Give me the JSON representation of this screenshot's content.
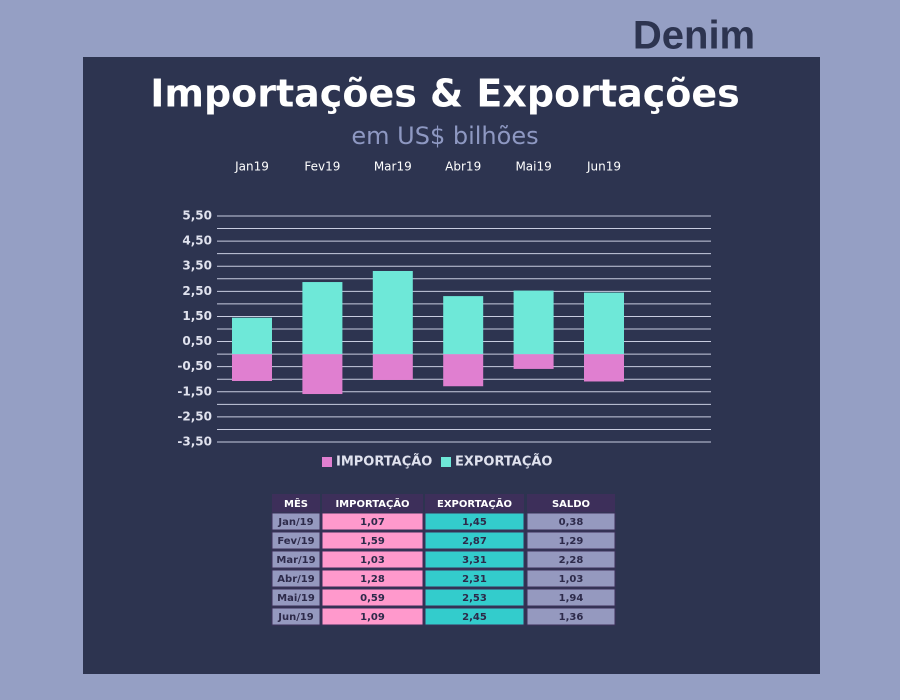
{
  "brand": "Denim",
  "chart_data": {
    "type": "bar",
    "stacked": true,
    "title": "Importações & Exportações",
    "subtitle": "em US$ bilhões",
    "categories": [
      "Jan19",
      "Fev19",
      "Mar19",
      "Abr19",
      "Mai19",
      "Jun19"
    ],
    "series": [
      {
        "name": "IMPORTAÇÃO",
        "color": "#e07fd0",
        "values": [
          -1.07,
          -1.59,
          -1.03,
          -1.28,
          -0.59,
          -1.09
        ]
      },
      {
        "name": "EXPORTAÇÃO",
        "color": "#6ee8d8",
        "values": [
          1.45,
          2.87,
          3.31,
          2.31,
          2.53,
          2.45
        ]
      }
    ],
    "ylim": [
      -3.5,
      5.5
    ],
    "yticks": [
      {
        "value": 5.5,
        "label": "5,50"
      },
      {
        "value": 4.5,
        "label": "4,50"
      },
      {
        "value": 3.5,
        "label": "3,50"
      },
      {
        "value": 2.5,
        "label": "2,50"
      },
      {
        "value": 1.5,
        "label": "1,50"
      },
      {
        "value": 0.5,
        "label": "0,50"
      },
      {
        "value": -0.5,
        "label": "-0,50"
      },
      {
        "value": -1.5,
        "label": "-1,50"
      },
      {
        "value": -2.5,
        "label": "-2,50"
      },
      {
        "value": -3.5,
        "label": "-3,50"
      }
    ],
    "minor_grid": [
      5,
      4,
      3,
      2,
      1,
      0,
      -1,
      -2,
      -3
    ],
    "grid": true,
    "legend": "bottom"
  },
  "table": {
    "header": [
      "MÊS",
      "IMPORTAÇÃO",
      "EXPORTAÇÃO",
      "SALDO"
    ],
    "rows": [
      [
        "Jan/19",
        "1,07",
        "1,45",
        "0,38"
      ],
      [
        "Fev/19",
        "1,59",
        "2,87",
        "1,29"
      ],
      [
        "Mar/19",
        "1,03",
        "3,31",
        "2,28"
      ],
      [
        "Abr/19",
        "1,28",
        "2,31",
        "1,03"
      ],
      [
        "Mai/19",
        "0,59",
        "2,53",
        "1,94"
      ],
      [
        "Jun/19",
        "1,09",
        "2,45",
        "1,36"
      ]
    ]
  }
}
